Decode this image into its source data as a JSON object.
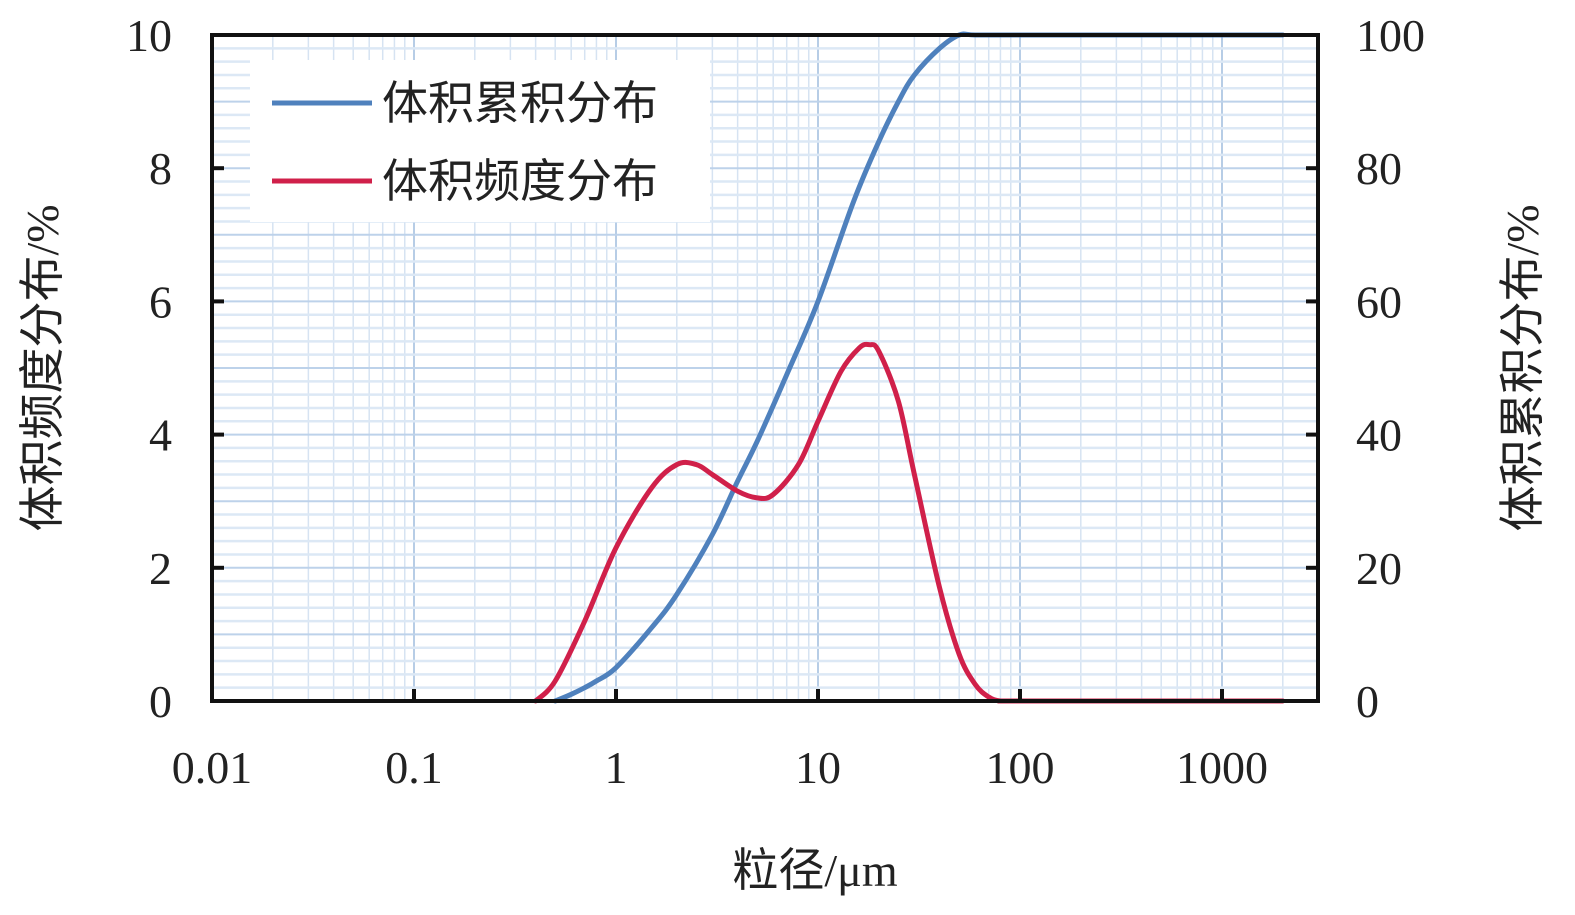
{
  "chart_data": {
    "type": "line",
    "title": "",
    "xlabel": "粒径/μm",
    "ylabel_left": "体积频度分布/%",
    "ylabel_right": "体积累积分布/%",
    "x_scale": "log",
    "xlim": [
      0.01,
      3000
    ],
    "ylim_left": [
      0,
      10
    ],
    "ylim_right": [
      0,
      100
    ],
    "x_ticks": [
      0.01,
      0.1,
      1,
      10,
      100,
      1000
    ],
    "x_tick_labels": [
      "0.01",
      "0.1",
      "1",
      "10",
      "100",
      "1000"
    ],
    "y_left_ticks": [
      0,
      2,
      4,
      6,
      8,
      10
    ],
    "y_left_tick_labels": [
      "0",
      "2",
      "4",
      "6",
      "8",
      "10"
    ],
    "y_right_ticks": [
      0,
      20,
      40,
      60,
      80,
      100
    ],
    "y_right_tick_labels": [
      "0",
      "20",
      "40",
      "60",
      "80",
      "100"
    ],
    "grid": true,
    "legend_position": "top-left",
    "series": [
      {
        "name": "体积累积分布",
        "axis": "right",
        "color": "#4f81bd",
        "x": [
          0.5,
          0.6,
          0.7,
          0.8,
          1,
          1.5,
          2,
          3,
          4,
          5,
          7,
          10,
          15,
          20,
          25,
          30,
          40,
          50,
          60,
          100,
          1000,
          2000
        ],
        "y": [
          0,
          1,
          2,
          3,
          5,
          11,
          16,
          25,
          33,
          39,
          49,
          60,
          75,
          84,
          90,
          94,
          98,
          100,
          100,
          100,
          100,
          100
        ]
      },
      {
        "name": "体积频度分布",
        "axis": "left",
        "color": "#d0204a",
        "x": [
          0.4,
          0.5,
          0.7,
          1,
          1.5,
          2,
          2.5,
          3,
          4,
          5,
          6,
          8,
          10,
          13,
          16,
          18,
          20,
          25,
          30,
          40,
          50,
          60,
          70,
          80,
          100,
          1000,
          2000
        ],
        "y": [
          0,
          0.3,
          1.2,
          2.3,
          3.2,
          3.55,
          3.55,
          3.4,
          3.15,
          3.05,
          3.1,
          3.55,
          4.2,
          4.95,
          5.3,
          5.35,
          5.25,
          4.5,
          3.4,
          1.7,
          0.7,
          0.25,
          0.06,
          0,
          0,
          0,
          0
        ]
      }
    ]
  }
}
